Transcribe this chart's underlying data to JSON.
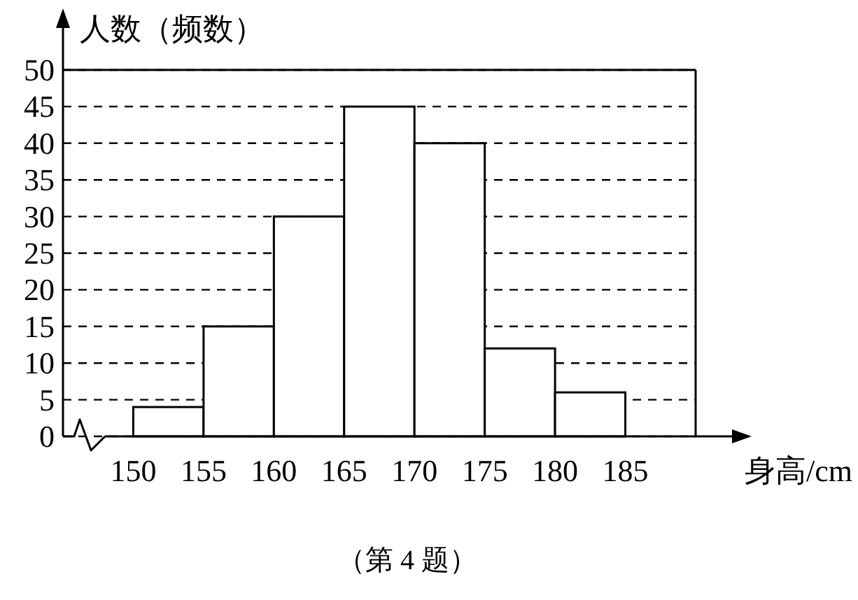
{
  "chart_data": {
    "type": "histogram",
    "bins": [
      150,
      155,
      160,
      165,
      170,
      175,
      180,
      185
    ],
    "values": [
      4,
      15,
      30,
      45,
      40,
      12,
      6
    ],
    "color": "#ffffff",
    "xlim": [
      145,
      190
    ],
    "ylim": [
      0,
      50
    ],
    "xticks": [
      150,
      155,
      160,
      165,
      170,
      175,
      180,
      185
    ],
    "yticks": [
      0,
      5,
      10,
      15,
      20,
      25,
      30,
      35,
      40,
      45,
      50
    ],
    "xlabel": "身高/cm",
    "ylabel": "人数（频数）",
    "grid": "y",
    "annotations": [
      "（第 4 题）"
    ]
  }
}
